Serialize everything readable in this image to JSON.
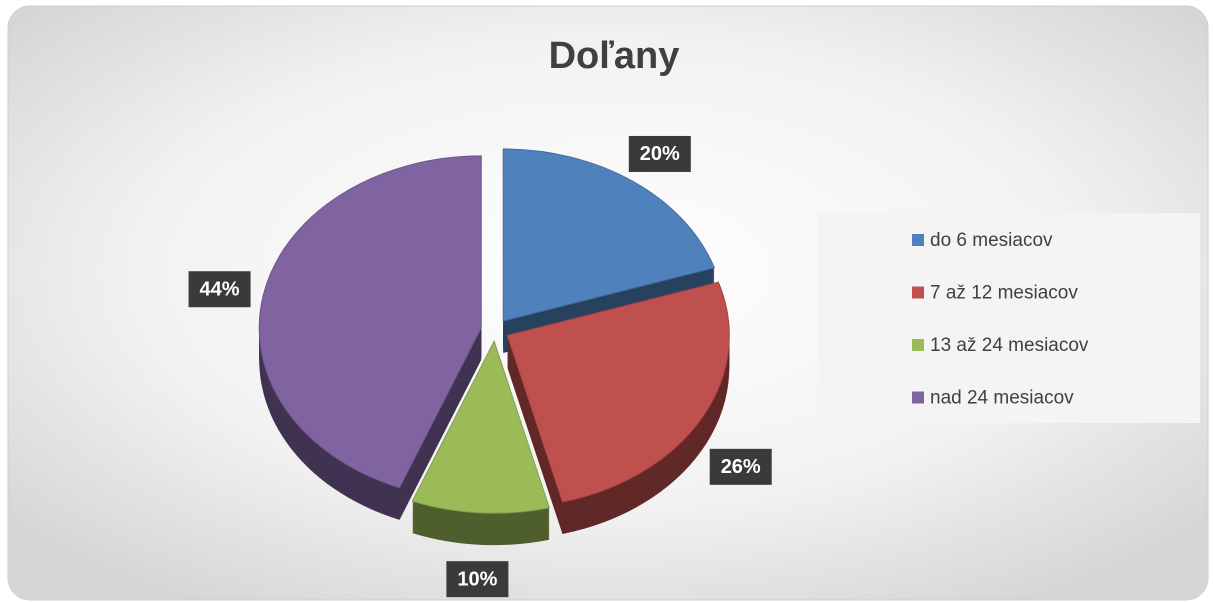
{
  "chart_data": {
    "type": "pie",
    "title": "Doľany",
    "categories": [
      "do 6 mesiacov",
      "7 až 12 mesiacov",
      "13 až 24 mesiacov",
      "nad 24 mesiacov"
    ],
    "values": [
      20,
      26,
      10,
      44
    ],
    "value_labels": [
      "20%",
      "26%",
      "10%",
      "44%"
    ],
    "colors": [
      "#4f81bd",
      "#c0504d",
      "#9bbb59",
      "#8064a2"
    ],
    "legend": "right"
  }
}
